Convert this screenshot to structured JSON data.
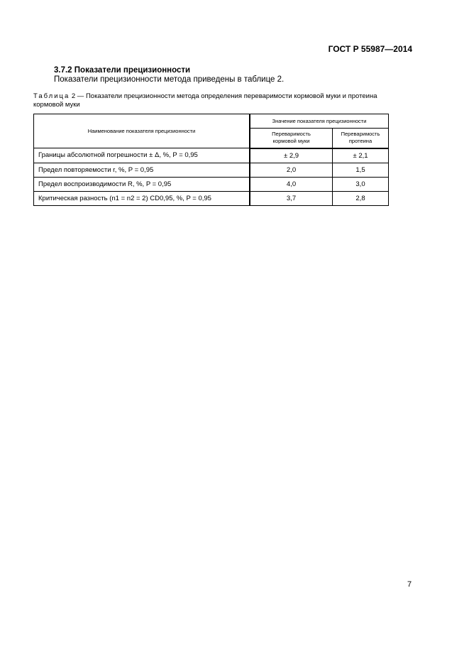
{
  "header": {
    "doc_code": "ГОСТ Р 55987—2014"
  },
  "section": {
    "title": "3.7.2 Показатели прецизионности",
    "text": "Показатели прецизионности метода приведены в таблице 2."
  },
  "table": {
    "caption_label": "Таблица",
    "caption_text": " 2 — Показатели прецизионности метода определения переваримости кормовой муки и протеина кормовой муки",
    "col_name": "Наименование показателя прецизионности",
    "col_group": "Значение показателя прецизионности",
    "col_a_1": "Переваримость",
    "col_a_2": "кормовой муки",
    "col_b_1": "Переваримость",
    "col_b_2": "протеина",
    "rows": [
      {
        "name": "Границы абсолютной погрешности ± Δ, %, P = 0,95",
        "a": "± 2,9",
        "b": "± 2,1"
      },
      {
        "name": "Предел повторяемости r, %, P = 0,95",
        "a": "2,0",
        "b": "1,5"
      },
      {
        "name": "Предел воспроизводимости R, %, P = 0,95",
        "a": "4,0",
        "b": "3,0"
      },
      {
        "name": "Критическая разность (n1 = n2 = 2) CD0,95, %, P = 0,95",
        "a": "3,7",
        "b": "2,8"
      }
    ]
  },
  "footer": {
    "page_number": "7"
  }
}
